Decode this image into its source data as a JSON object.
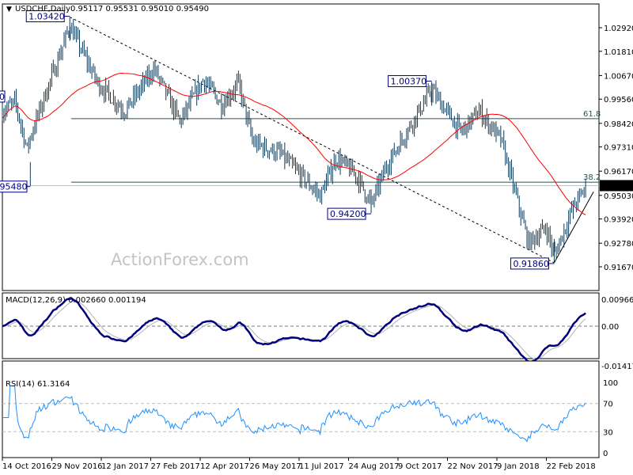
{
  "header": {
    "symbol": "USDCHF,Daily",
    "ohlc": "0.95117 0.95531 0.95010 0.95490",
    "icon": "triangle-down-icon"
  },
  "watermark": "ActionForex.com",
  "chart_data": [
    {
      "type": "ohlc",
      "panel": "price",
      "title": "USDCHF,Daily",
      "open": 0.95117,
      "high": 0.95531,
      "low": 0.9501,
      "close": 0.9549,
      "y_ticks": [
        "1.02920",
        "1.01810",
        "1.00670",
        "0.99560",
        "0.98420",
        "0.97310",
        "0.96170",
        "0.95030",
        "0.93920",
        "0.92780",
        "0.91670"
      ],
      "ylim": [
        0.9167,
        1.0292
      ],
      "current_price_label": "0.95490",
      "x_ticks": [
        "14 Oct 2016",
        "29 Nov 2016",
        "12 Jan 2017",
        "27 Feb 2017",
        "12 Apr 2017",
        "26 May 2017",
        "11 Jul 2017",
        "24 Aug 2017",
        "9 Oct 2017",
        "22 Nov 2017",
        "9 Jan 2018",
        "22 Feb 2018"
      ],
      "x_tick_dates": [
        "2016-10-14",
        "2016-11-29",
        "2017-01-12",
        "2017-02-27",
        "2017-04-12",
        "2017-05-26",
        "2017-07-11",
        "2017-08-24",
        "2017-10-09",
        "2017-11-22",
        "2018-01-09",
        "2018-02-22"
      ],
      "waypoints": [
        {
          "date": "2016-10-14",
          "close": 0.99
        },
        {
          "date": "2016-10-26",
          "close": 0.994
        },
        {
          "date": "2016-11-06",
          "close": 0.972
        },
        {
          "date": "2016-11-09",
          "close": 0.978
        },
        {
          "date": "2016-12-15",
          "close": 1.03
        },
        {
          "date": "2017-01-09",
          "close": 1.003
        },
        {
          "date": "2017-02-03",
          "close": 0.99
        },
        {
          "date": "2017-03-02",
          "close": 1.01
        },
        {
          "date": "2017-03-25",
          "close": 0.985
        },
        {
          "date": "2017-04-15",
          "close": 1.005
        },
        {
          "date": "2017-05-01",
          "close": 0.993
        },
        {
          "date": "2017-05-16",
          "close": 1.003
        },
        {
          "date": "2017-05-29",
          "close": 0.975
        },
        {
          "date": "2017-06-23",
          "close": 0.97
        },
        {
          "date": "2017-07-30",
          "close": 0.95
        },
        {
          "date": "2017-08-13",
          "close": 0.968
        },
        {
          "date": "2017-08-31",
          "close": 0.96
        },
        {
          "date": "2017-09-14",
          "close": 0.946
        },
        {
          "date": "2017-09-29",
          "close": 0.965
        },
        {
          "date": "2017-11-08",
          "close": 1.0
        },
        {
          "date": "2017-12-05",
          "close": 0.98
        },
        {
          "date": "2017-12-23",
          "close": 0.99
        },
        {
          "date": "2018-01-13",
          "close": 0.976
        },
        {
          "date": "2018-02-06",
          "close": 0.928
        },
        {
          "date": "2018-02-22",
          "close": 0.935
        },
        {
          "date": "2018-03-01",
          "close": 0.922
        },
        {
          "date": "2018-03-18",
          "close": 0.945
        },
        {
          "date": "2018-03-30",
          "close": 0.9549
        }
      ],
      "annotations": [
        {
          "text": "1.03420",
          "date": "2016-12-15",
          "price": 1.0342,
          "kind": "high"
        },
        {
          "text": "0.95480",
          "date": "2016-11-09",
          "price": 0.9548,
          "kind": "low"
        },
        {
          "text": "1.00370",
          "date": "2017-11-08",
          "price": 1.0037,
          "kind": "high"
        },
        {
          "text": "0.94200",
          "date": "2017-09-14",
          "price": 0.942,
          "kind": "low"
        },
        {
          "text": "0.91860",
          "date": "2018-03-01",
          "price": 0.9186,
          "kind": "low"
        },
        {
          "text": "0",
          "price": 0.9968,
          "kind": "cut-off"
        }
      ],
      "fibonacci": [
        {
          "level": "61.8",
          "price": 0.9864
        },
        {
          "level": "38.2",
          "price": 0.9565
        }
      ],
      "trendlines": [
        {
          "style": "dashed",
          "from": {
            "date": "2016-12-15",
            "price": 1.0342
          },
          "to": {
            "date": "2018-03-01",
            "price": 0.9186
          }
        },
        {
          "style": "solid",
          "from": {
            "date": "2018-03-01",
            "price": 0.9186
          },
          "to": {
            "date": "2018-04-05",
            "price": 0.952
          }
        }
      ],
      "moving_average": {
        "period": 55,
        "color": "#ff0000"
      },
      "bar_color": "#0f3b57"
    },
    {
      "type": "line",
      "panel": "macd",
      "label": "MACD(12,26,9) 0.002660 0.001194",
      "main": 0.00266,
      "signal": 0.001194,
      "y_ticks": [
        "0.009664",
        "0.00",
        "-0.014171"
      ],
      "ylim": [
        -0.014171,
        0.009664
      ],
      "colors": {
        "main": "#00007f",
        "signal": "#b4b4b4"
      }
    },
    {
      "type": "line",
      "panel": "rsi",
      "label": "RSI(14) 61.3164",
      "value": 61.3164,
      "y_ticks": [
        "100",
        "70",
        "30",
        "0"
      ],
      "ylim": [
        0,
        100
      ],
      "levels": [
        70,
        30
      ],
      "color": "#1e90ff"
    }
  ]
}
